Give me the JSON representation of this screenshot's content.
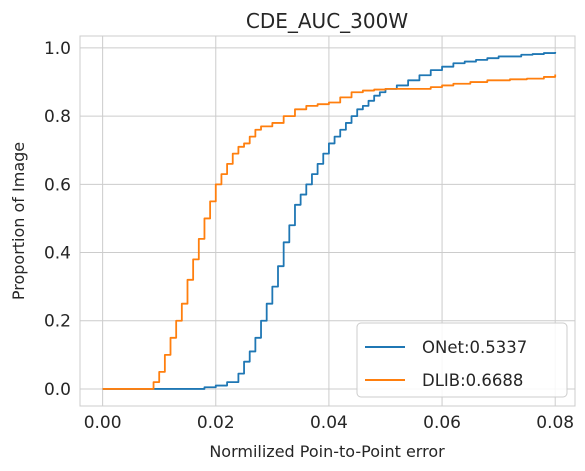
{
  "chart_data": {
    "type": "line",
    "title": "CDE_AUC_300W",
    "xlabel": "Normilized Poin-to-Point error",
    "ylabel": "Proportion of Image",
    "xlim": [
      -0.004,
      0.0835
    ],
    "ylim": [
      -0.05,
      1.035
    ],
    "x_ticks": [
      0.0,
      0.02,
      0.04,
      0.06,
      0.08
    ],
    "x_tick_labels": [
      "0.00",
      "0.02",
      "0.04",
      "0.06",
      "0.08"
    ],
    "y_ticks": [
      0.0,
      0.2,
      0.4,
      0.6,
      0.8,
      1.0
    ],
    "y_tick_labels": [
      "0.0",
      "0.2",
      "0.4",
      "0.6",
      "0.8",
      "1.0"
    ],
    "grid": true,
    "legend_position": "lower-right",
    "series": [
      {
        "name": "ONet:0.5337",
        "color": "#1f77b4",
        "x": [
          0.0,
          0.008,
          0.012,
          0.016,
          0.018,
          0.02,
          0.022,
          0.024,
          0.025,
          0.026,
          0.027,
          0.028,
          0.029,
          0.03,
          0.031,
          0.032,
          0.033,
          0.034,
          0.035,
          0.036,
          0.037,
          0.038,
          0.039,
          0.04,
          0.041,
          0.042,
          0.043,
          0.044,
          0.045,
          0.046,
          0.047,
          0.048,
          0.049,
          0.05,
          0.052,
          0.054,
          0.056,
          0.058,
          0.06,
          0.062,
          0.064,
          0.066,
          0.068,
          0.07,
          0.072,
          0.074,
          0.076,
          0.078,
          0.08
        ],
        "y": [
          0.0,
          0.0,
          0.0,
          0.0,
          0.005,
          0.01,
          0.02,
          0.045,
          0.08,
          0.11,
          0.15,
          0.2,
          0.25,
          0.3,
          0.36,
          0.43,
          0.48,
          0.54,
          0.57,
          0.6,
          0.63,
          0.66,
          0.69,
          0.72,
          0.74,
          0.76,
          0.78,
          0.8,
          0.82,
          0.83,
          0.845,
          0.86,
          0.87,
          0.88,
          0.89,
          0.905,
          0.92,
          0.935,
          0.945,
          0.955,
          0.96,
          0.965,
          0.97,
          0.975,
          0.975,
          0.98,
          0.982,
          0.985,
          0.988
        ]
      },
      {
        "name": "DLIB:0.6688",
        "color": "#ff7f0e",
        "x": [
          0.0,
          0.008,
          0.009,
          0.01,
          0.011,
          0.012,
          0.013,
          0.014,
          0.015,
          0.016,
          0.017,
          0.018,
          0.019,
          0.02,
          0.021,
          0.022,
          0.023,
          0.024,
          0.025,
          0.026,
          0.027,
          0.028,
          0.03,
          0.032,
          0.034,
          0.036,
          0.038,
          0.04,
          0.042,
          0.044,
          0.046,
          0.048,
          0.05,
          0.052,
          0.055,
          0.058,
          0.06,
          0.062,
          0.065,
          0.068,
          0.07,
          0.072,
          0.075,
          0.078,
          0.08
        ],
        "y": [
          0.0,
          0.0,
          0.02,
          0.05,
          0.1,
          0.15,
          0.2,
          0.25,
          0.32,
          0.38,
          0.44,
          0.5,
          0.55,
          0.6,
          0.63,
          0.66,
          0.69,
          0.71,
          0.72,
          0.74,
          0.76,
          0.77,
          0.78,
          0.8,
          0.82,
          0.83,
          0.835,
          0.84,
          0.855,
          0.87,
          0.875,
          0.878,
          0.88,
          0.88,
          0.88,
          0.885,
          0.89,
          0.895,
          0.9,
          0.905,
          0.905,
          0.908,
          0.91,
          0.915,
          0.922
        ]
      }
    ]
  }
}
